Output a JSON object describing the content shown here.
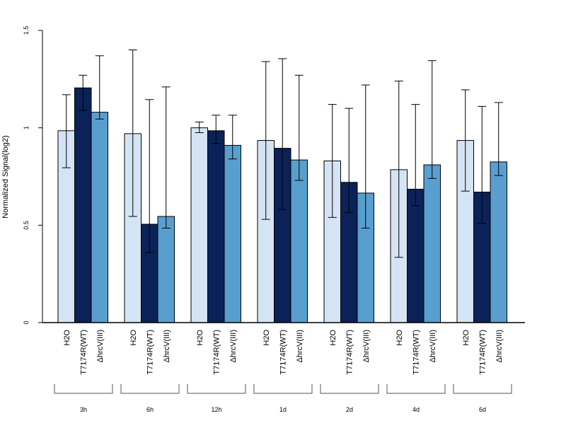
{
  "chart_data": {
    "type": "bar",
    "title": "",
    "xlabel": "",
    "ylabel": "Normalized Signal(log2)",
    "ylim": [
      0,
      1.5
    ],
    "yticks": [
      "0",
      "0.5",
      "1",
      "1.5"
    ],
    "grid": false,
    "legend": "none",
    "categories": [
      "3h",
      "6h",
      "12h",
      "1d",
      "2d",
      "4d",
      "6d"
    ],
    "series": [
      {
        "name": "H2O",
        "color": "#d5e4f4",
        "values": [
          0.985,
          0.97,
          1.0,
          0.935,
          0.83,
          0.785,
          0.935
        ],
        "error_low": [
          0.795,
          0.545,
          0.975,
          0.53,
          0.54,
          0.335,
          0.675
        ],
        "error_high": [
          1.17,
          1.4,
          1.03,
          1.34,
          1.12,
          1.24,
          1.195
        ]
      },
      {
        "name": "T7174R(WT)",
        "color": "#0b2258",
        "values": [
          1.205,
          0.505,
          0.985,
          0.895,
          0.72,
          0.685,
          0.67
        ],
        "error_low": [
          1.09,
          0.36,
          0.92,
          0.58,
          0.565,
          0.6,
          0.51
        ],
        "error_high": [
          1.27,
          1.145,
          1.065,
          1.355,
          1.1,
          1.12,
          1.11
        ]
      },
      {
        "name": "ΔhrcV(III)",
        "color": "#589fcf",
        "values": [
          1.08,
          0.545,
          0.91,
          0.835,
          0.665,
          0.81,
          0.825
        ],
        "error_low": [
          1.045,
          0.485,
          0.84,
          0.73,
          0.485,
          0.74,
          0.755
        ],
        "error_high": [
          1.37,
          1.21,
          1.065,
          1.27,
          1.22,
          1.345,
          1.13
        ]
      }
    ]
  }
}
